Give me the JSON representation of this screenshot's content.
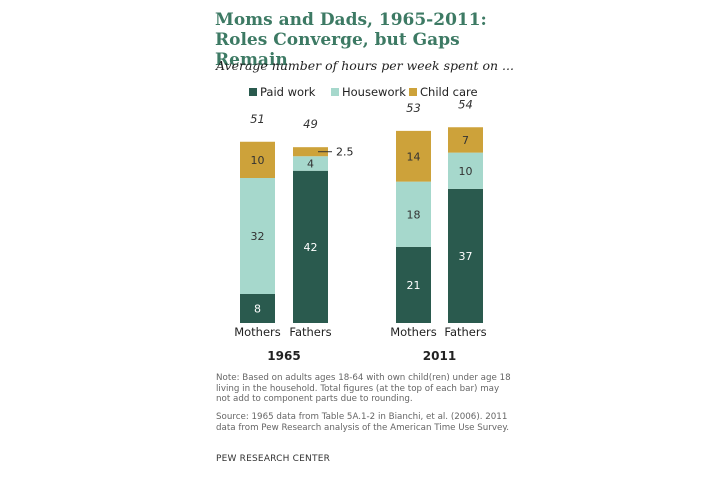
{
  "title_line1": "Moms and Dads, 1965-2011:",
  "title_line2": "Roles Converge, but Gaps Remain",
  "subtitle": "Average number of hours per week spent on ...",
  "note": "Note: Based on adults ages 18-64 with own child(ren) under age 18 living in the household. Total figures (at the top of each bar) may not add to component parts due to rounding.",
  "source": "Source: 1965 data from Table 5A.1-2 in Bianchi, et al. (2006). 2011 data from Pew Research analysis of the American Time Use Survey.",
  "credit": "PEW RESEARCH  CENTER",
  "colors": {
    "paid_work": "#2a5a4e",
    "housework": "#a6d8cc",
    "child_care": "#cda23a"
  },
  "chart_data": {
    "type": "bar",
    "stacked": true,
    "title": "Moms and Dads, 1965-2011: Roles Converge, but Gaps Remain",
    "ylabel": "Average number of hours per week",
    "ylim": [
      0,
      60
    ],
    "legend_position": "top",
    "groups": [
      "1965",
      "2011"
    ],
    "categories": [
      "Mothers",
      "Fathers",
      "Mothers",
      "Fathers"
    ],
    "category_group": [
      "1965",
      "1965",
      "2011",
      "2011"
    ],
    "series": [
      {
        "name": "Paid work",
        "values": [
          8,
          42,
          21,
          37
        ]
      },
      {
        "name": "Housework",
        "values": [
          32,
          4,
          18,
          10
        ]
      },
      {
        "name": "Child care",
        "values": [
          10,
          2.5,
          14,
          7
        ]
      }
    ],
    "totals": [
      "51",
      "49",
      "53",
      "54"
    ],
    "segment_labels": [
      [
        "8",
        "32",
        "10"
      ],
      [
        "42",
        "4",
        ""
      ],
      [
        "21",
        "18",
        "14"
      ],
      [
        "37",
        "10",
        "7"
      ]
    ],
    "callout": {
      "category_index": 1,
      "series_index": 2,
      "text": "2.5"
    }
  }
}
